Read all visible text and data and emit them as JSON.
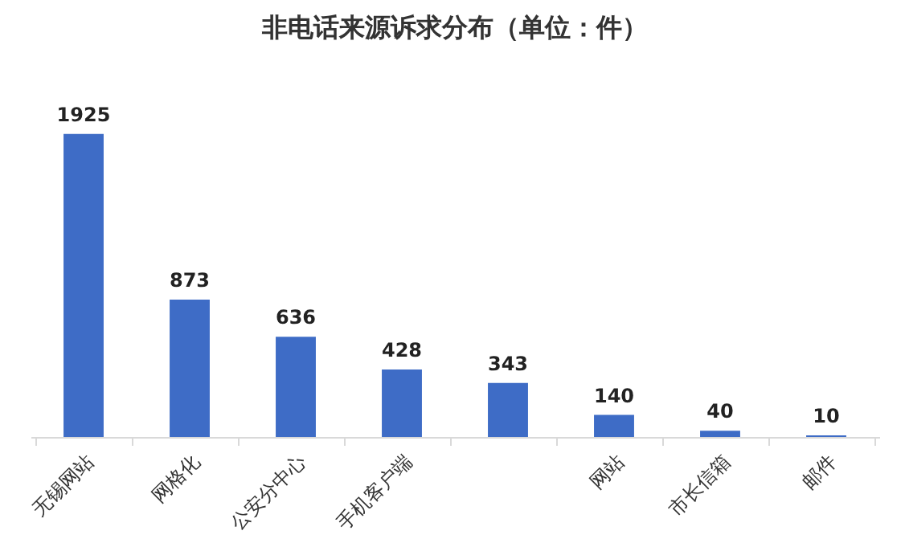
{
  "chart_data": {
    "type": "bar",
    "title": "非电话来源诉求分布（单位：件）",
    "categories": [
      "无锡网站",
      "网格化",
      "公安分中心",
      "手机客户端",
      null,
      "网站",
      "市长信箱",
      "邮件"
    ],
    "values": [
      1925,
      873,
      636,
      428,
      343,
      140,
      40,
      10
    ],
    "color": "#3e6cc6",
    "data_labels": true
  }
}
